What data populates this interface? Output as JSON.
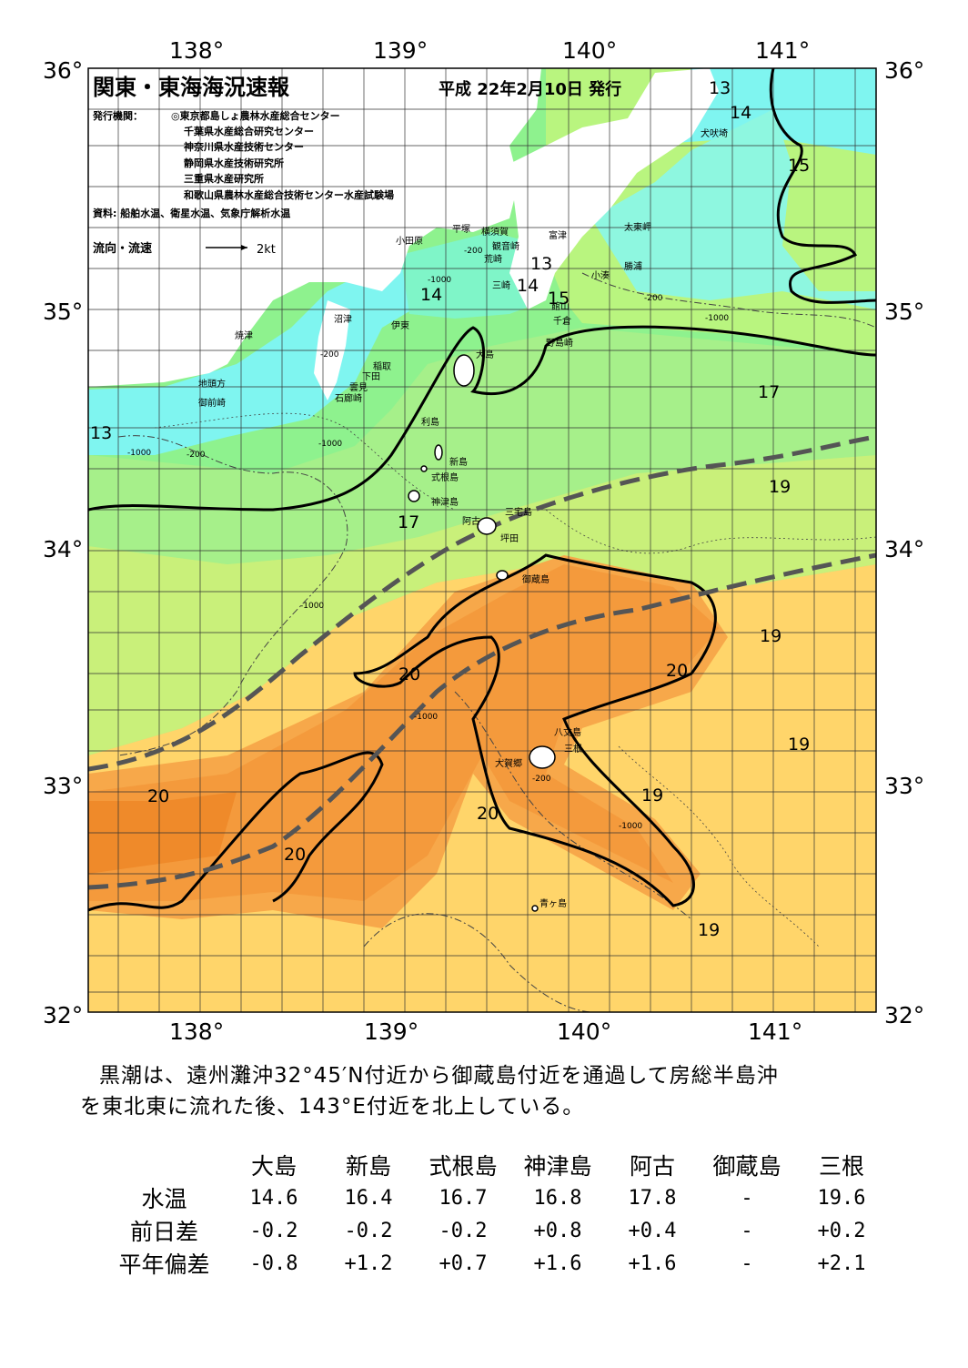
{
  "title": "関東・東海海況速報",
  "issue_date": "平成 22年2月10日 発行",
  "publisher_label": "発行機関：",
  "publishers": [
    "◎東京都島しょ農林水産総合センター",
    "千葉県水産総合研究センター",
    "神奈川県水産技術センター",
    "静岡県水産技術研究所",
    "三重県水産研究所",
    "和歌山県農林水産総合技術センター水産試験場"
  ],
  "source": "資料: 船舶水温、衛星水温、気象庁解析水温",
  "legend": {
    "label": "流向・流速",
    "scale": "2kt"
  },
  "axes": {
    "lon_ticks": [
      "138°",
      "139°",
      "140°",
      "141°"
    ],
    "lat_ticks": [
      "36°",
      "35°",
      "34°",
      "33°",
      "32°"
    ]
  },
  "isotherm_labels": [
    "13",
    "14",
    "15",
    "13",
    "14",
    "15",
    "14",
    "13",
    "17",
    "17",
    "19",
    "20",
    "20",
    "20",
    "20",
    "20",
    "20",
    "19",
    "19",
    "19",
    "19",
    "19"
  ],
  "depth_labels": [
    "-200",
    "-1000",
    "-200",
    "-1000",
    "-200",
    "-1000",
    "-200",
    "-1000",
    "-1000",
    "-1000",
    "-1000",
    "-200"
  ],
  "places": {
    "land": [
      "犬吠埼",
      "富津",
      "太東岬",
      "勝浦",
      "小湊",
      "横須賀",
      "平塚",
      "観音崎",
      "小田原",
      "荒崎",
      "三崎",
      "館山",
      "千倉",
      "野島崎",
      "沼津",
      "焼津",
      "伊東",
      "稲取",
      "下田",
      "雲見",
      "石廊崎",
      "地頭方",
      "御前崎"
    ],
    "islands": [
      "大島",
      "利島",
      "新島",
      "式根島",
      "神津島",
      "三宅島",
      "阿古",
      "坪田",
      "御蔵島",
      "八丈島",
      "三根",
      "大賀郷",
      "青ヶ島"
    ]
  },
  "summary": [
    "黒潮は、遠州灘沖32°45′N付近から御蔵島付近を通過して房総半島沖",
    "を東北東に流れた後、143°E付近を北上している。"
  ],
  "table": {
    "columns": [
      "大島",
      "新島",
      "式根島",
      "神津島",
      "阿古",
      "御蔵島",
      "三根"
    ],
    "rows": [
      {
        "label": "水温",
        "values": [
          "14.6",
          "16.4",
          "16.7",
          "16.8",
          "17.8",
          "-",
          "19.6"
        ]
      },
      {
        "label": "前日差",
        "values": [
          "-0.2",
          "-0.2",
          "-0.2",
          "+0.8",
          "+0.4",
          "-",
          "+0.2"
        ]
      },
      {
        "label": "平年偏差",
        "values": [
          "-0.8",
          "+1.2",
          "+0.7",
          "+1.6",
          "+1.6",
          "-",
          "+2.1"
        ]
      }
    ]
  },
  "colors": {
    "cold": "#7ff5f0",
    "cool": "#8ef28e",
    "mid": "#c6f07a",
    "warm": "#ffe07a",
    "hot": "#f9a547",
    "hotter": "#f08a2a",
    "land": "#ffffff",
    "kuroshio": "#555555"
  }
}
